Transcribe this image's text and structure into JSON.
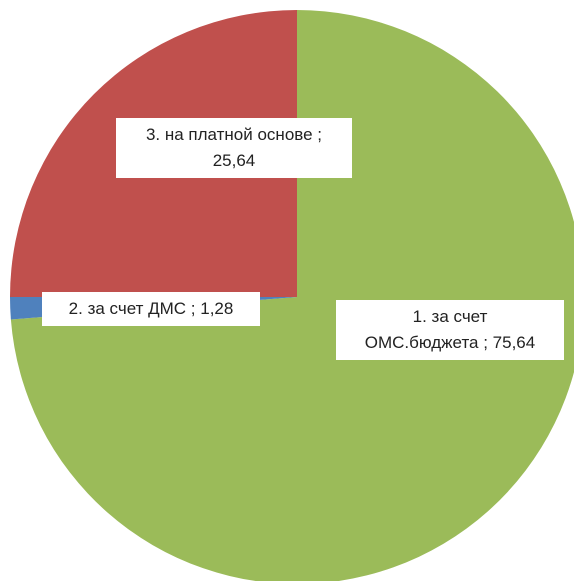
{
  "chart_data": {
    "type": "pie",
    "categories": [
      "1. за счет ОМС.бюджета",
      "2. за счет ДМС",
      "3. на платной основе"
    ],
    "values": [
      75.64,
      1.28,
      25.64
    ],
    "value_labels": [
      "75,64",
      "1,28",
      "25,64"
    ],
    "label_separator": " ; ",
    "colors": [
      "#9bbb59",
      "#4f81bd",
      "#c0504d"
    ]
  }
}
